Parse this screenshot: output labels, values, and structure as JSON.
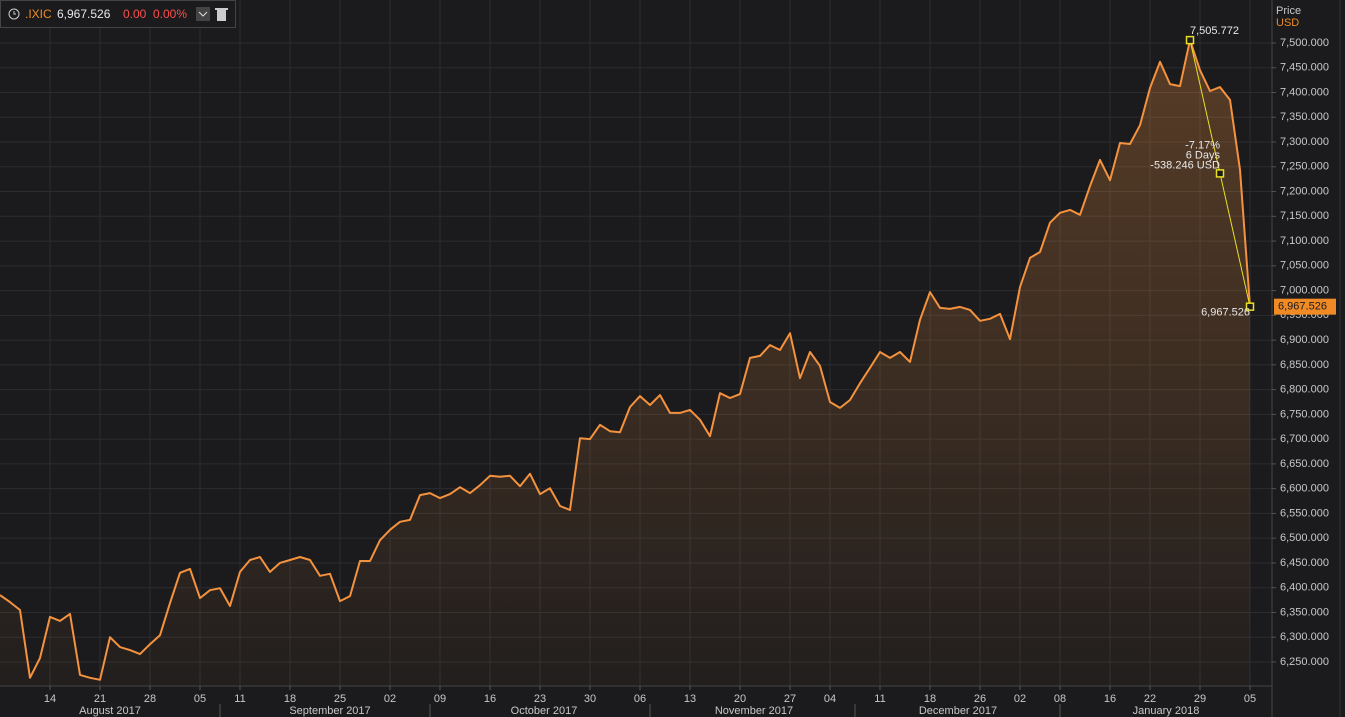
{
  "chart_data": {
    "type": "line",
    "header": {
      "symbol": ".IXIC",
      "price": "6,967.526",
      "change": "0.00",
      "change_pct": "0.00%"
    },
    "axis_title": "Price",
    "axis_unit": "USD",
    "months": [
      "August 2017",
      "September 2017",
      "October 2017",
      "November 2017",
      "December 2017",
      "January 2018"
    ],
    "categories": [
      null,
      null,
      null,
      null,
      null,
      "14",
      null,
      null,
      null,
      null,
      "21",
      null,
      null,
      null,
      null,
      "28",
      null,
      null,
      null,
      null,
      "05",
      null,
      null,
      null,
      "11",
      null,
      null,
      null,
      null,
      "18",
      null,
      null,
      null,
      null,
      "25",
      null,
      null,
      null,
      null,
      "02",
      null,
      null,
      null,
      null,
      "09",
      null,
      null,
      null,
      null,
      "16",
      null,
      null,
      null,
      null,
      "23",
      null,
      null,
      null,
      null,
      "30",
      null,
      null,
      null,
      null,
      "06",
      null,
      null,
      null,
      null,
      "13",
      null,
      null,
      null,
      null,
      "20",
      null,
      null,
      null,
      null,
      "27",
      null,
      null,
      null,
      "04",
      null,
      null,
      null,
      null,
      "11",
      null,
      null,
      null,
      null,
      "18",
      null,
      null,
      null,
      null,
      "26",
      null,
      null,
      null,
      "02",
      null,
      null,
      null,
      "08",
      null,
      null,
      null,
      null,
      "16",
      null,
      null,
      null,
      "22",
      null,
      null,
      null,
      null,
      "29",
      null,
      null,
      null,
      null,
      "05"
    ],
    "series": [
      {
        "name": ".IXIC",
        "color": "#f5923e",
        "values": [
          6385,
          6371,
          6355,
          6218,
          6258,
          6341,
          6333,
          6347,
          6224,
          6218,
          6214,
          6300,
          6280,
          6274,
          6266,
          6286,
          6304,
          6369,
          6430,
          6438,
          6379,
          6395,
          6399,
          6363,
          6432,
          6456,
          6462,
          6432,
          6450,
          6456,
          6462,
          6456,
          6424,
          6428,
          6373,
          6383,
          6454,
          6454,
          6496,
          6517,
          6533,
          6537,
          6587,
          6591,
          6581,
          6589,
          6603,
          6591,
          6607,
          6626,
          6624,
          6626,
          6605,
          6630,
          6589,
          6601,
          6565,
          6557,
          6702,
          6700,
          6729,
          6716,
          6714,
          6765,
          6787,
          6769,
          6789,
          6753,
          6753,
          6759,
          6739,
          6706,
          6793,
          6783,
          6791,
          6864,
          6868,
          6890,
          6880,
          6914,
          6823,
          6876,
          6848,
          6775,
          6763,
          6779,
          6813,
          6844,
          6876,
          6864,
          6876,
          6856,
          6941,
          6997,
          6965,
          6963,
          6967,
          6961,
          6939,
          6943,
          6953,
          6902,
          7007,
          7066,
          7078,
          7137,
          7157,
          7163,
          7153,
          7211,
          7264,
          7223,
          7298,
          7296,
          7334,
          7409,
          7462,
          7417,
          7413,
          7505.772,
          7445,
          7403,
          7411,
          7385,
          7244,
          6967.526
        ]
      }
    ],
    "ylim": [
      6201.5,
      7586.8
    ],
    "yticks": [
      {
        "value": 6250,
        "label": "6,250.000"
      },
      {
        "value": 6300,
        "label": "6,300.000"
      },
      {
        "value": 6350,
        "label": "6,350.000"
      },
      {
        "value": 6400,
        "label": "6,400.000"
      },
      {
        "value": 6450,
        "label": "6,450.000"
      },
      {
        "value": 6500,
        "label": "6,500.000"
      },
      {
        "value": 6550,
        "label": "6,550.000"
      },
      {
        "value": 6600,
        "label": "6,600.000"
      },
      {
        "value": 6650,
        "label": "6,650.000"
      },
      {
        "value": 6700,
        "label": "6,700.000"
      },
      {
        "value": 6750,
        "label": "6,750.000"
      },
      {
        "value": 6800,
        "label": "6,800.000"
      },
      {
        "value": 6850,
        "label": "6,850.000"
      },
      {
        "value": 6900,
        "label": "6,900.000"
      },
      {
        "value": 6950,
        "label": "6,950.000"
      },
      {
        "value": 7000,
        "label": "7,000.000"
      },
      {
        "value": 7050,
        "label": "7,050.000"
      },
      {
        "value": 7100,
        "label": "7,100.000"
      },
      {
        "value": 7150,
        "label": "7,150.000"
      },
      {
        "value": 7200,
        "label": "7,200.000"
      },
      {
        "value": 7250,
        "label": "7,250.000"
      },
      {
        "value": 7300,
        "label": "7,300.000"
      },
      {
        "value": 7350,
        "label": "7,350.000"
      },
      {
        "value": 7400,
        "label": "7,400.000"
      },
      {
        "value": 7450,
        "label": "7,450.000"
      },
      {
        "value": 7500,
        "label": "7,500.000"
      }
    ],
    "grid": true,
    "annotations": {
      "peak_label": "7,505.772",
      "pct": "-7.17%",
      "days": "6 Days",
      "diff": "-538.246 USD",
      "end_label": "6,967.526",
      "last_price": "6,967.526"
    }
  }
}
